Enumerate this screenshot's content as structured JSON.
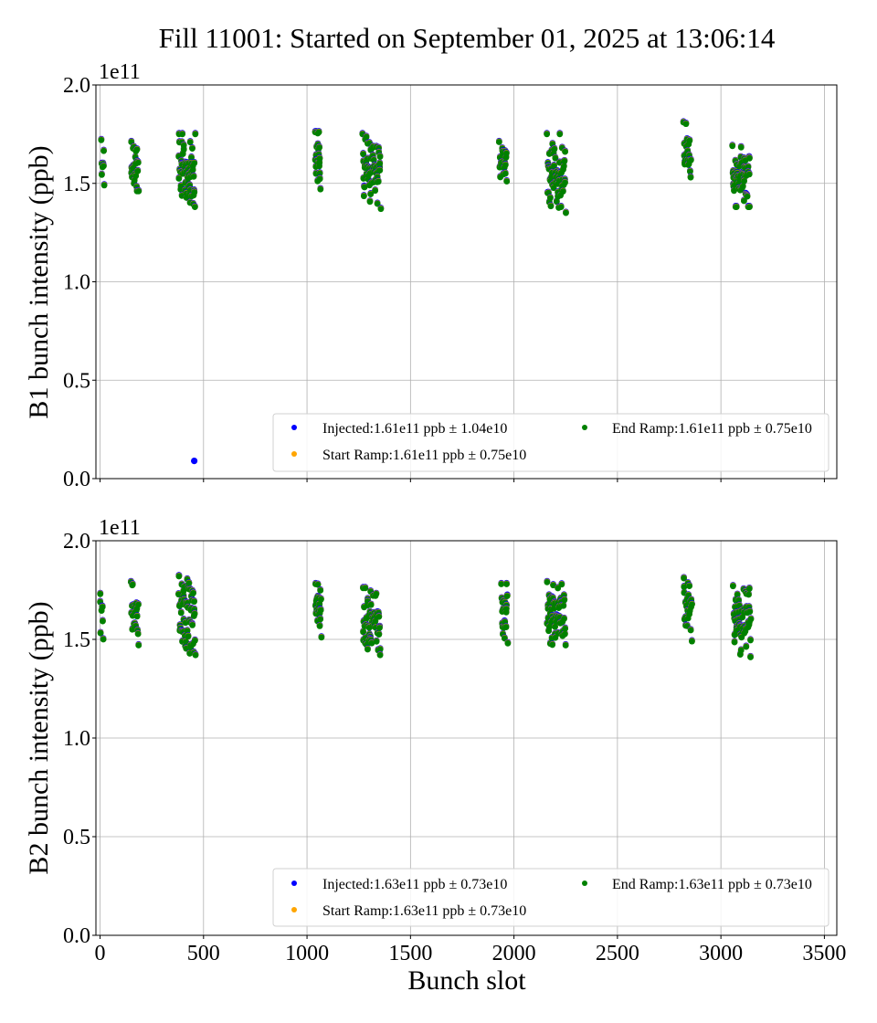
{
  "figure_title": "Fill 11001: Started on September 01, 2025 at 13:06:14",
  "chart_data": [
    {
      "type": "scatter",
      "title": "",
      "ylabel": "B1 bunch intensity (ppb)",
      "xlabel": "",
      "y_offset_label": "1e11",
      "xlim": [
        -20,
        3560
      ],
      "ylim": [
        0.0,
        2.0
      ],
      "x_ticks": [
        0,
        500,
        1000,
        1500,
        2000,
        2500,
        3000,
        3500
      ],
      "x_tick_labels_visible": false,
      "y_ticks": [
        0.0,
        0.5,
        1.0,
        1.5,
        2.0
      ],
      "y_tick_labels": [
        "0.0",
        "0.5",
        "1.0",
        "1.5",
        "2.0"
      ],
      "grid": true,
      "legend_position": "bottom-right",
      "series": [
        {
          "name": "Injected",
          "label": "Injected:1.61e11 ppb ± 1.04e10",
          "color": "#0000ff"
        },
        {
          "name": "Start Ramp",
          "label": "Start Ramp:1.61e11 ppb ± 0.75e10",
          "color": "#ffa500"
        },
        {
          "name": "End Ramp",
          "label": "End Ramp:1.61e11 ppb ± 0.75e10",
          "color": "#008000"
        }
      ],
      "clusters": [
        {
          "slot_range": [
            5,
            20
          ],
          "value_range": [
            1.49,
            1.72
          ],
          "count": 8
        },
        {
          "slot_range": [
            150,
            185
          ],
          "value_range": [
            1.46,
            1.71
          ],
          "count": 24
        },
        {
          "slot_range": [
            380,
            460
          ],
          "value_range": [
            1.38,
            1.75
          ],
          "count": 60
        },
        {
          "slot_range": [
            1040,
            1065
          ],
          "value_range": [
            1.47,
            1.76
          ],
          "count": 24
        },
        {
          "slot_range": [
            1270,
            1355
          ],
          "value_range": [
            1.37,
            1.75
          ],
          "count": 60
        },
        {
          "slot_range": [
            1930,
            1965
          ],
          "value_range": [
            1.51,
            1.71
          ],
          "count": 24
        },
        {
          "slot_range": [
            2160,
            2250
          ],
          "value_range": [
            1.35,
            1.75
          ],
          "count": 60
        },
        {
          "slot_range": [
            2820,
            2855
          ],
          "value_range": [
            1.53,
            1.81
          ],
          "count": 24
        },
        {
          "slot_range": [
            3055,
            3140
          ],
          "value_range": [
            1.38,
            1.69
          ],
          "count": 60
        }
      ],
      "outliers": [
        {
          "series": "Injected",
          "slot": 455,
          "value": 0.09
        }
      ]
    },
    {
      "type": "scatter",
      "title": "",
      "ylabel": "B2 bunch intensity (ppb)",
      "xlabel": "Bunch slot",
      "y_offset_label": "1e11",
      "xlim": [
        -20,
        3560
      ],
      "ylim": [
        0.0,
        2.0
      ],
      "x_ticks": [
        0,
        500,
        1000,
        1500,
        2000,
        2500,
        3000,
        3500
      ],
      "x_tick_labels": [
        "0",
        "500",
        "1000",
        "1500",
        "2000",
        "2500",
        "3000",
        "3500"
      ],
      "y_ticks": [
        0.0,
        0.5,
        1.0,
        1.5,
        2.0
      ],
      "y_tick_labels": [
        "0.0",
        "0.5",
        "1.0",
        "1.5",
        "2.0"
      ],
      "grid": true,
      "legend_position": "bottom-right",
      "series": [
        {
          "name": "Injected",
          "label": "Injected:1.63e11 ppb ± 0.73e10",
          "color": "#0000ff"
        },
        {
          "name": "Start Ramp",
          "label": "Start Ramp:1.63e11 ppb ± 0.73e10",
          "color": "#ffa500"
        },
        {
          "name": "End Ramp",
          "label": "End Ramp:1.63e11 ppb ± 0.73e10",
          "color": "#008000"
        }
      ],
      "clusters": [
        {
          "slot_range": [
            0,
            15
          ],
          "value_range": [
            1.5,
            1.73
          ],
          "count": 8
        },
        {
          "slot_range": [
            150,
            185
          ],
          "value_range": [
            1.47,
            1.79
          ],
          "count": 24
        },
        {
          "slot_range": [
            380,
            460
          ],
          "value_range": [
            1.42,
            1.82
          ],
          "count": 60
        },
        {
          "slot_range": [
            1040,
            1070
          ],
          "value_range": [
            1.51,
            1.78
          ],
          "count": 24
        },
        {
          "slot_range": [
            1270,
            1355
          ],
          "value_range": [
            1.42,
            1.76
          ],
          "count": 60
        },
        {
          "slot_range": [
            1940,
            1970
          ],
          "value_range": [
            1.48,
            1.78
          ],
          "count": 24
        },
        {
          "slot_range": [
            2160,
            2250
          ],
          "value_range": [
            1.47,
            1.79
          ],
          "count": 60
        },
        {
          "slot_range": [
            2820,
            2860
          ],
          "value_range": [
            1.49,
            1.81
          ],
          "count": 24
        },
        {
          "slot_range": [
            3060,
            3145
          ],
          "value_range": [
            1.41,
            1.77
          ],
          "count": 60
        }
      ],
      "outliers": []
    }
  ]
}
